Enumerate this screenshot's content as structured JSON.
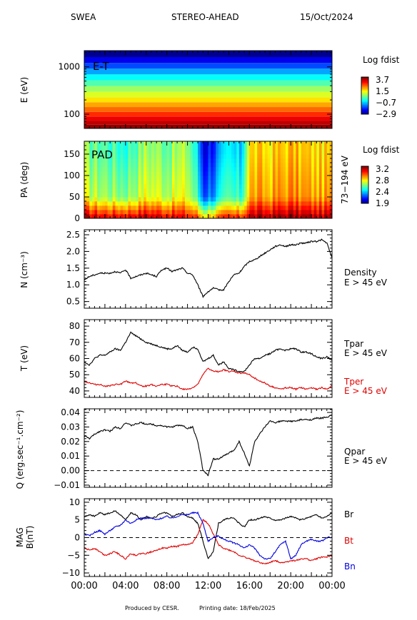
{
  "header": {
    "instrument": "SWEA",
    "spacecraft": "STEREO-AHEAD",
    "date": "15/Oct/2024"
  },
  "footer": {
    "produced_by": "Produced by CESR.",
    "printing_date": "Printing date: 18/Feb/2025"
  },
  "colors": {
    "black_series": "#000000",
    "red_series": "#e00000",
    "blue_series": "#0000e0"
  },
  "chart_data": [
    {
      "type": "heatmap",
      "panel_label": "E-T",
      "ylabel": "E (eV)",
      "yscale": "log",
      "ylim": [
        50,
        2200
      ],
      "yticks": [
        "1000",
        "100"
      ],
      "colorbar": {
        "title": "Log fdist",
        "ticks": [
          "3.7",
          "1.5",
          "−0.7",
          "−2.9"
        ],
        "range": [
          -2.9,
          3.7
        ]
      },
      "x_hours": [
        0,
        24
      ],
      "energy_bands_eV": [
        55,
        65,
        80,
        100,
        125,
        160,
        200,
        260,
        340,
        450,
        600,
        800,
        1050,
        1400,
        1850
      ],
      "band_levels": [
        3.6,
        3.3,
        3.0,
        2.6,
        2.2,
        1.8,
        1.4,
        1.0,
        0.6,
        0.1,
        -0.4,
        -1.0,
        -1.6,
        -2.2,
        -2.8
      ]
    },
    {
      "type": "heatmap",
      "panel_label": "PAD",
      "ylabel": "PA (deg)",
      "ylim": [
        0,
        180
      ],
      "yticks": [
        "150",
        "100",
        "50",
        "0"
      ],
      "right_label": "73−194 eV",
      "colorbar": {
        "title": "Log fdist",
        "ticks": [
          "3.2",
          "2.8",
          "2.4",
          "1.9"
        ],
        "range": [
          1.9,
          3.2
        ]
      },
      "x_hours": [
        0,
        24
      ],
      "time_points_h": [
        0,
        2,
        4,
        6,
        8,
        10,
        10.8,
        11.6,
        12.6,
        14,
        15.2,
        16,
        18,
        20,
        22,
        24
      ],
      "high_pa_level": [
        2.55,
        2.5,
        2.45,
        2.6,
        2.55,
        2.6,
        2.4,
        2.05,
        2.15,
        2.35,
        2.3,
        2.75,
        2.75,
        2.8,
        2.75,
        2.75
      ],
      "low_pa_level": [
        3.15,
        3.1,
        3.1,
        3.15,
        3.1,
        3.05,
        3.0,
        2.8,
        2.9,
        3.0,
        3.0,
        3.15,
        3.15,
        3.2,
        3.15,
        3.15
      ]
    },
    {
      "type": "line",
      "ylabel": "N (cm⁻³)",
      "ylim": [
        0.3,
        2.65
      ],
      "yticks": [
        "2.5",
        "2.0",
        "1.5",
        "1.0",
        "0.5"
      ],
      "ytick_values": [
        2.5,
        2.0,
        1.5,
        1.0,
        0.5
      ],
      "x_hours": [
        0,
        24
      ],
      "series": [
        {
          "legend": [
            "Density",
            "E > 45 eV"
          ],
          "color": "#000000",
          "x": [
            0,
            0.5,
            1,
            1.5,
            2,
            2.5,
            3,
            3.5,
            4,
            4.5,
            5,
            5.5,
            6,
            6.5,
            7,
            7.5,
            8,
            8.5,
            9,
            9.5,
            10,
            10.5,
            11,
            11.5,
            12,
            12.5,
            13,
            13.5,
            14,
            14.5,
            15,
            15.5,
            16,
            16.5,
            17,
            17.5,
            18,
            18.5,
            19,
            19.5,
            20,
            20.5,
            21,
            21.5,
            22,
            22.5,
            23,
            23.5,
            24
          ],
          "y": [
            1.15,
            1.25,
            1.3,
            1.35,
            1.35,
            1.35,
            1.4,
            1.35,
            1.45,
            1.2,
            1.25,
            1.3,
            1.35,
            1.3,
            1.25,
            1.45,
            1.5,
            1.4,
            1.45,
            1.5,
            1.35,
            1.3,
            1.0,
            0.65,
            0.8,
            0.9,
            0.85,
            0.85,
            1.1,
            1.3,
            1.35,
            1.55,
            1.7,
            1.75,
            1.85,
            1.95,
            2.05,
            2.15,
            2.2,
            2.15,
            2.2,
            2.2,
            2.25,
            2.25,
            2.3,
            2.3,
            2.35,
            2.25,
            1.8
          ]
        }
      ]
    },
    {
      "type": "line",
      "ylabel": "T (eV)",
      "ylim": [
        36,
        84
      ],
      "yticks": [
        "80",
        "70",
        "60",
        "50",
        "40"
      ],
      "ytick_values": [
        80,
        70,
        60,
        50,
        40
      ],
      "x_hours": [
        0,
        24
      ],
      "series": [
        {
          "legend": [
            "Tpar",
            "E > 45 eV"
          ],
          "color": "#000000",
          "x": [
            0,
            0.5,
            1,
            1.5,
            2,
            2.5,
            3,
            3.5,
            4,
            4.5,
            5,
            5.5,
            6,
            6.5,
            7,
            7.5,
            8,
            8.5,
            9,
            9.5,
            10,
            10.5,
            11,
            11.5,
            12,
            12.5,
            13,
            13.5,
            14,
            14.5,
            15,
            15.5,
            16,
            16.5,
            17,
            17.5,
            18,
            18.5,
            19,
            19.5,
            20,
            20.5,
            21,
            21.5,
            22,
            22.5,
            23,
            23.5,
            24
          ],
          "y": [
            58,
            56,
            60,
            62,
            62,
            64,
            66,
            65,
            70,
            76,
            74,
            72,
            70,
            69,
            68,
            67,
            66,
            66,
            68,
            65,
            64,
            67,
            66,
            58,
            60,
            62,
            56,
            58,
            54,
            53,
            52,
            52,
            56,
            60,
            60,
            62,
            63,
            65,
            66,
            65,
            66,
            66,
            64,
            64,
            63,
            61,
            60,
            61,
            59
          ]
        },
        {
          "legend": [
            "Tper",
            "E > 45 eV"
          ],
          "color": "#e00000",
          "x": [
            0,
            0.5,
            1,
            1.5,
            2,
            2.5,
            3,
            3.5,
            4,
            4.5,
            5,
            5.5,
            6,
            6.5,
            7,
            7.5,
            8,
            8.5,
            9,
            9.5,
            10,
            10.5,
            11,
            11.5,
            12,
            12.5,
            13,
            13.5,
            14,
            14.5,
            15,
            15.5,
            16,
            16.5,
            17,
            17.5,
            18,
            18.5,
            19,
            19.5,
            20,
            20.5,
            21,
            21.5,
            22,
            22.5,
            23,
            23.5,
            24
          ],
          "y": [
            46,
            45,
            44,
            44,
            43,
            43,
            44,
            44,
            46,
            45,
            45,
            43,
            43,
            44,
            43,
            44,
            44,
            43,
            43,
            41,
            41,
            42,
            44,
            50,
            54,
            52,
            52,
            53,
            52,
            52,
            51,
            51,
            50,
            48,
            46,
            45,
            43,
            42,
            41,
            42,
            42,
            41,
            42,
            41,
            42,
            41,
            42,
            41,
            43
          ]
        }
      ]
    },
    {
      "type": "line",
      "ylabel": "Q (erg.sec⁻¹.cm⁻²)",
      "ylim": [
        -0.0115,
        0.0425
      ],
      "yticks": [
        "0.04",
        "0.03",
        "0.02",
        "0.01",
        "0.00",
        "−0.01"
      ],
      "ytick_values": [
        0.04,
        0.03,
        0.02,
        0.01,
        0.0,
        -0.01
      ],
      "reference_line": 0,
      "x_hours": [
        0,
        24
      ],
      "series": [
        {
          "legend": [
            "Qpar",
            "E > 45 eV"
          ],
          "color": "#000000",
          "x": [
            0,
            0.5,
            1,
            1.5,
            2,
            2.5,
            3,
            3.5,
            4,
            4.5,
            5,
            5.5,
            6,
            6.5,
            7,
            7.5,
            8,
            8.5,
            9,
            9.5,
            10,
            10.5,
            11,
            11.5,
            12,
            12.5,
            13,
            13.5,
            14,
            14.5,
            15,
            15.5,
            16,
            16.5,
            17,
            17.5,
            18,
            18.5,
            19,
            19.5,
            20,
            20.5,
            21,
            21.5,
            22,
            22.5,
            23,
            23.5,
            24
          ],
          "y": [
            0.024,
            0.022,
            0.025,
            0.027,
            0.028,
            0.027,
            0.03,
            0.029,
            0.033,
            0.031,
            0.032,
            0.033,
            0.032,
            0.032,
            0.031,
            0.031,
            0.03,
            0.03,
            0.031,
            0.031,
            0.029,
            0.03,
            0.02,
            0.0,
            -0.003,
            0.008,
            0.008,
            0.01,
            0.012,
            0.014,
            0.02,
            0.012,
            0.003,
            0.02,
            0.025,
            0.03,
            0.034,
            0.033,
            0.034,
            0.034,
            0.034,
            0.034,
            0.035,
            0.035,
            0.035,
            0.036,
            0.036,
            0.037,
            0.038
          ]
        }
      ]
    },
    {
      "type": "line",
      "ylabel": "MAG B(nT)",
      "ylim": [
        -11,
        11
      ],
      "yticks": [
        "10",
        "5",
        "0",
        "−5",
        "−10"
      ],
      "ytick_values": [
        10,
        5,
        0,
        -5,
        -10
      ],
      "reference_line": 0,
      "x_hours": [
        0,
        24
      ],
      "xticks": [
        "00:00",
        "04:00",
        "08:00",
        "12:00",
        "16:00",
        "20:00",
        "00:00"
      ],
      "series": [
        {
          "legend": [
            "Br"
          ],
          "color": "#000000",
          "x": [
            0,
            0.5,
            1,
            1.5,
            2,
            2.5,
            3,
            3.5,
            4,
            4.5,
            5,
            5.5,
            6,
            6.5,
            7,
            7.5,
            8,
            8.5,
            9,
            9.5,
            10,
            10.5,
            11,
            11.5,
            12,
            12.5,
            13,
            13.5,
            14,
            14.5,
            15,
            15.5,
            16,
            16.5,
            17,
            17.5,
            18,
            18.5,
            19,
            19.5,
            20,
            20.5,
            21,
            21.5,
            22,
            22.5,
            23,
            23.5,
            24
          ],
          "y": [
            6,
            6.5,
            6,
            7,
            6.5,
            7,
            7.5,
            6.5,
            5,
            7,
            6.5,
            5,
            6,
            5.5,
            6,
            7,
            7,
            6,
            6.5,
            7,
            6,
            5.5,
            4,
            -1,
            -6,
            -4,
            4,
            5,
            5.5,
            5.5,
            4,
            3,
            5,
            5,
            5.5,
            6,
            5.5,
            5,
            5,
            5.5,
            6,
            5.5,
            5,
            5.5,
            6,
            6.5,
            5.5,
            6,
            7
          ]
        },
        {
          "legend": [
            "Bt"
          ],
          "color": "#e00000",
          "x": [
            0,
            0.5,
            1,
            1.5,
            2,
            2.5,
            3,
            3.5,
            4,
            4.5,
            5,
            5.5,
            6,
            6.5,
            7,
            7.5,
            8,
            8.5,
            9,
            9.5,
            10,
            10.5,
            11,
            11.5,
            12,
            12.5,
            13,
            13.5,
            14,
            14.5,
            15,
            15.5,
            16,
            16.5,
            17,
            17.5,
            18,
            18.5,
            19,
            19.5,
            20,
            20.5,
            21,
            21.5,
            22,
            22.5,
            23,
            23.5,
            24
          ],
          "y": [
            -3,
            -3.5,
            -3,
            -4,
            -5,
            -4.5,
            -4,
            -5,
            -6,
            -4.5,
            -5,
            -4.5,
            -4.5,
            -4,
            -3.5,
            -3,
            -3,
            -2.5,
            -2.5,
            -2,
            -2,
            -1.5,
            1,
            5,
            4,
            1,
            -2,
            -3,
            -3.5,
            -4,
            -5,
            -5.5,
            -6,
            -6.5,
            -7,
            -7.5,
            -7,
            -6.5,
            -7,
            -7,
            -6.5,
            -6.5,
            -6,
            -6,
            -6.5,
            -6,
            -5.5,
            -5.5,
            -5
          ]
        },
        {
          "legend": [
            "Bn"
          ],
          "color": "#0000e0",
          "x": [
            0,
            0.5,
            1,
            1.5,
            2,
            2.5,
            3,
            3.5,
            4,
            4.5,
            5,
            5.5,
            6,
            6.5,
            7,
            7.5,
            8,
            8.5,
            9,
            9.5,
            10,
            10.5,
            11,
            11.5,
            12,
            12.5,
            13,
            13.5,
            14,
            14.5,
            15,
            15.5,
            16,
            16.5,
            17,
            17.5,
            18,
            18.5,
            19,
            19.5,
            20,
            20.5,
            21,
            21.5,
            22,
            22.5,
            23,
            23.5,
            24
          ],
          "y": [
            1,
            0.5,
            1.5,
            2,
            1,
            2,
            3,
            3.5,
            5,
            4,
            5,
            5.5,
            5.5,
            5.5,
            5,
            5.5,
            6,
            5.5,
            6,
            6.5,
            6.5,
            7,
            7,
            4,
            -1,
            0,
            0.5,
            -0.5,
            -1,
            -1.5,
            -2,
            -3,
            -2,
            -3,
            -5,
            -6,
            -6,
            -4,
            -2,
            -1,
            -6,
            -5,
            -2,
            -1,
            -0.5,
            -1,
            -1,
            0,
            0
          ]
        }
      ]
    }
  ]
}
